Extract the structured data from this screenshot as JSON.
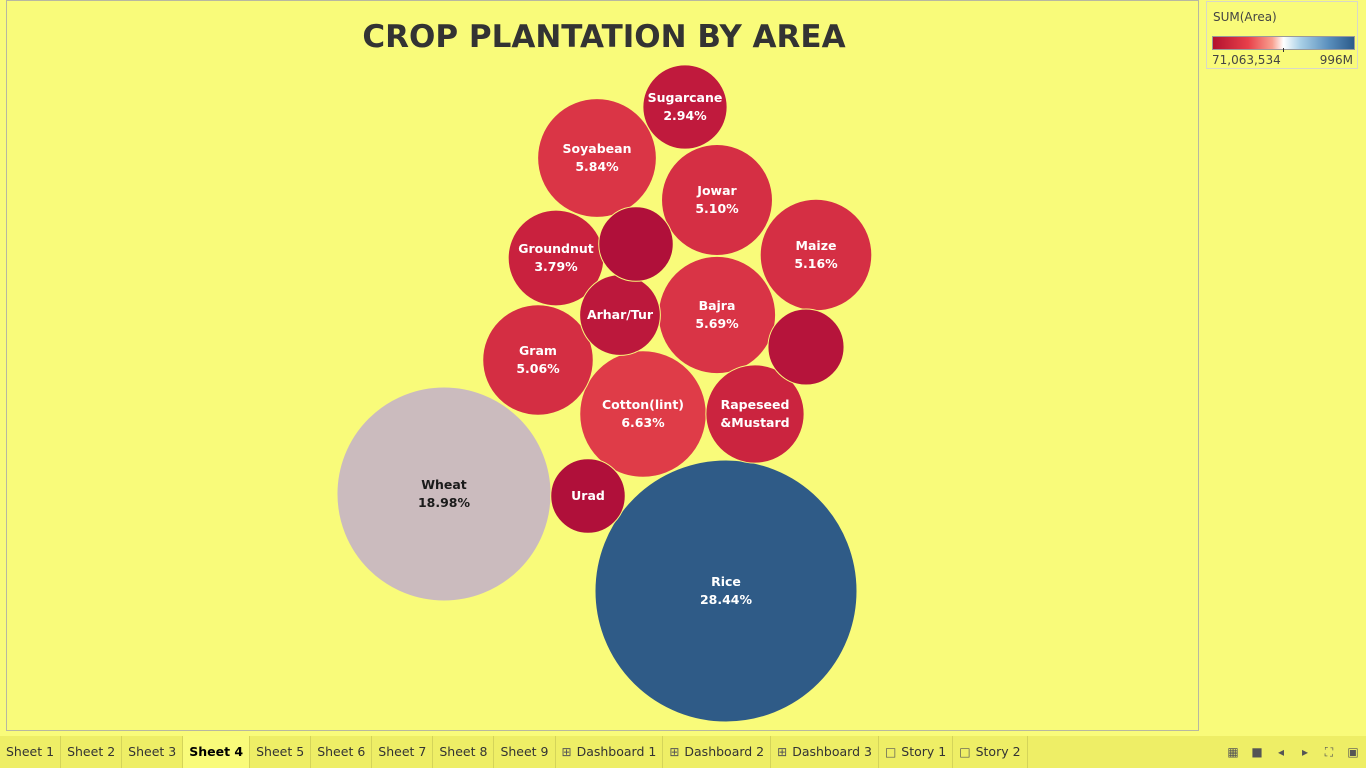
{
  "chart_data": {
    "type": "bubble",
    "title": "CROP PLANTATION BY AREA",
    "bubbles": [
      {
        "crop": "Rice",
        "pct": "28.44%",
        "share": 28.44
      },
      {
        "crop": "Wheat",
        "pct": "18.98%",
        "share": 18.98
      },
      {
        "crop": "Cotton(lint)",
        "pct": "6.63%",
        "share": 6.63
      },
      {
        "crop": "Soyabean",
        "pct": "5.84%",
        "share": 5.84
      },
      {
        "crop": "Bajra",
        "pct": "5.69%",
        "share": 5.69
      },
      {
        "crop": "Maize",
        "pct": "5.16%",
        "share": 5.16
      },
      {
        "crop": "Jowar",
        "pct": "5.10%",
        "share": 5.1
      },
      {
        "crop": "Gram",
        "pct": "5.06%",
        "share": 5.06
      },
      {
        "crop": "Rapeseed &Mustard",
        "label_lines": [
          "Rapeseed",
          "&Mustard"
        ],
        "pct": "",
        "share": 4.0
      },
      {
        "crop": "Groundnut",
        "pct": "3.79%",
        "share": 3.79
      },
      {
        "crop": "Sugarcane",
        "pct": "2.94%",
        "share": 2.94
      },
      {
        "crop": "Arhar/Tur",
        "pct": "",
        "share": 2.7
      },
      {
        "crop": "",
        "pct": "",
        "share": 2.3
      },
      {
        "crop": "",
        "pct": "",
        "share": 2.4
      },
      {
        "crop": "Urad",
        "pct": "",
        "share": 2.3
      }
    ],
    "color_scale": {
      "label": "SUM(Area)",
      "min_label": "71,063,534",
      "max_label": "996M",
      "low_color": "#b3112e",
      "mid_color": "#ffffff",
      "high_color": "#2b5a8a"
    }
  },
  "tabs": [
    {
      "label": "Sheet 1",
      "icon": ""
    },
    {
      "label": "Sheet 2",
      "icon": ""
    },
    {
      "label": "Sheet 3",
      "icon": ""
    },
    {
      "label": "Sheet 4",
      "icon": "",
      "active": true
    },
    {
      "label": "Sheet 5",
      "icon": ""
    },
    {
      "label": "Sheet 6",
      "icon": ""
    },
    {
      "label": "Sheet 7",
      "icon": ""
    },
    {
      "label": "Sheet 8",
      "icon": ""
    },
    {
      "label": "Sheet 9",
      "icon": ""
    },
    {
      "label": "Dashboard 1",
      "icon": "dashboard-icon"
    },
    {
      "label": "Dashboard 2",
      "icon": "dashboard-icon"
    },
    {
      "label": "Dashboard 3",
      "icon": "dashboard-icon"
    },
    {
      "label": "Story 1",
      "icon": "story-icon"
    },
    {
      "label": "Story 2",
      "icon": "story-icon"
    }
  ],
  "tab_controls": [
    "grid-view-icon",
    "filmstrip-icon",
    "prev-tab-icon",
    "next-tab-icon",
    "fullscreen-icon",
    "presentation-icon"
  ]
}
